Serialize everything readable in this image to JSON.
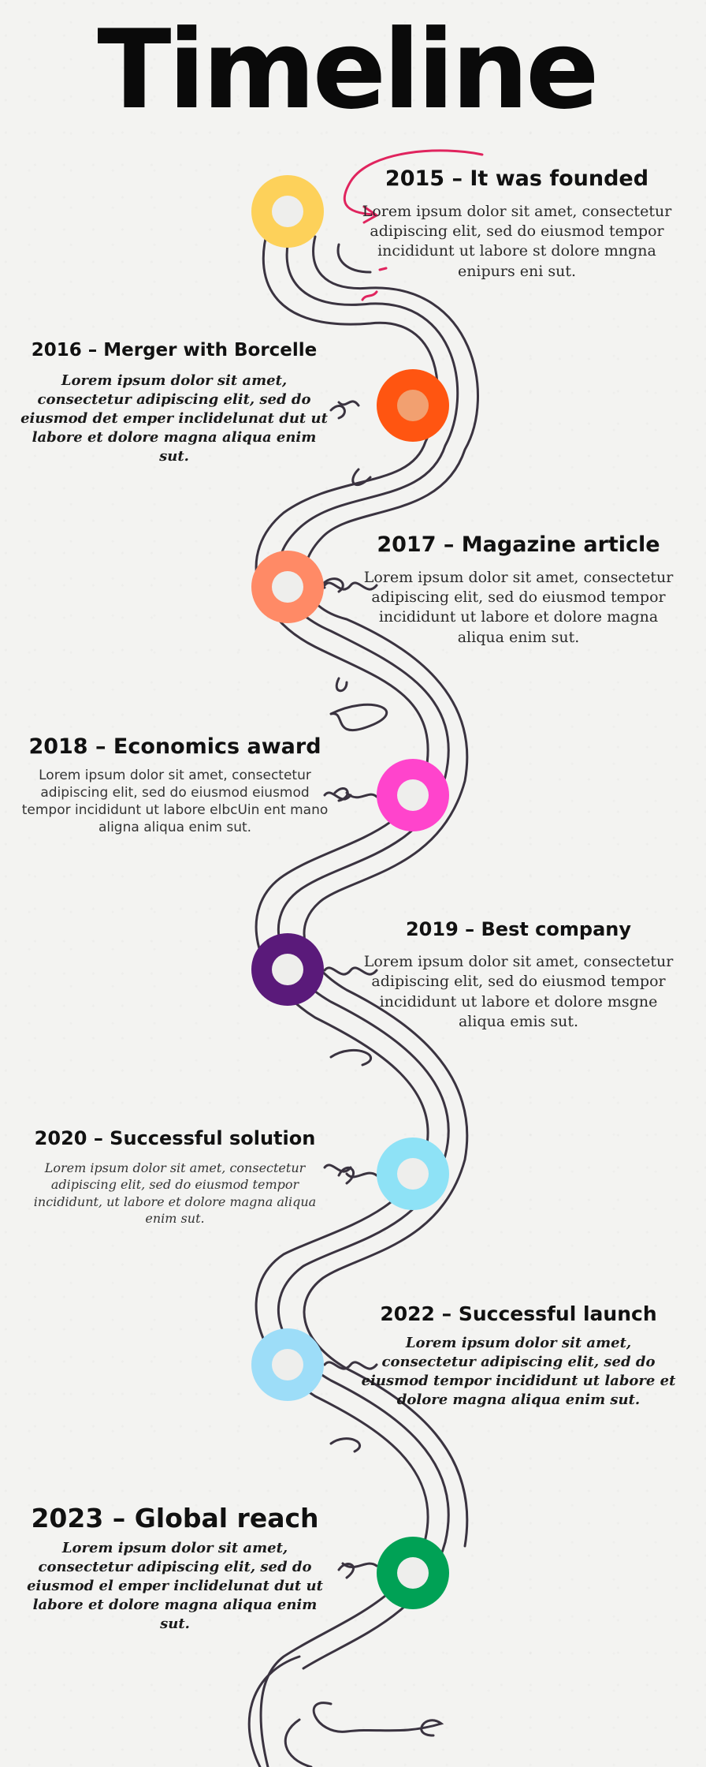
{
  "title": "Timeline",
  "colors": {
    "ink": "#3a3340",
    "accent_pink": "#e0245e"
  },
  "events": [
    {
      "heading": "2015 – It was founded",
      "body": "Lorem ipsum dolor sit amet, consectetur adipiscing elit, sed do eiusmod tempor incididunt ut labore st dolore mngna enipurs eni sut.",
      "dot_color": "#fdd15a"
    },
    {
      "heading": "2016 – Merger with Borcelle",
      "body": "Lorem ipsum dolor sit amet, consectetur adipiscing elit, sed do eiusmod det emper inclidelunat dut ut labore et dolore magna aliqua enim sut.",
      "dot_color": "#ff5511"
    },
    {
      "heading": "2017 – Magazine article",
      "body": "Lorem ipsum dolor sit amet, consectetur adipiscing elit, sed do eiusmod tempor incididunt ut labore et dolore magna aliqua enim sut.",
      "dot_color": "#ff8a66"
    },
    {
      "heading": "2018 – Economics award",
      "body": "Lorem ipsum dolor sit amet, consectetur adipiscing elit, sed do eiusmod eiusmod tempor incididunt ut labore elbcUin ent mano aligna aliqua enim sut.",
      "dot_color": "#ff44cc"
    },
    {
      "heading": "2019 – Best company",
      "body": "Lorem ipsum dolor sit amet, consectetur adipiscing elit, sed do eiusmod tempor incididunt ut labore et dolore msgne aliqua emis sut.",
      "dot_color": "#5a1a7a"
    },
    {
      "heading": "2020 – Successful solution",
      "body": "Lorem ipsum dolor sit amet, consectetur adipiscing elit, sed do eiusmod tempor incididunt, ut labore et dolore magna aliqua enim sut.",
      "dot_color": "#8ee2f6"
    },
    {
      "heading": "2022 – Successful launch",
      "body": "Lorem ipsum dolor sit amet, consectetur adipiscing elit, sed do eiusmod tempor incididunt ut labore et dolore magna aliqua enim sut.",
      "dot_color": "#9dddf8"
    },
    {
      "heading": "2023 – Global reach",
      "body": "Lorem ipsum dolor sit amet, consectetur adipiscing elit, sed do eiusmod el emper inclidelunat dut ut labore et dolore magna aliqua enim sut.",
      "dot_color": "#00a155"
    }
  ]
}
